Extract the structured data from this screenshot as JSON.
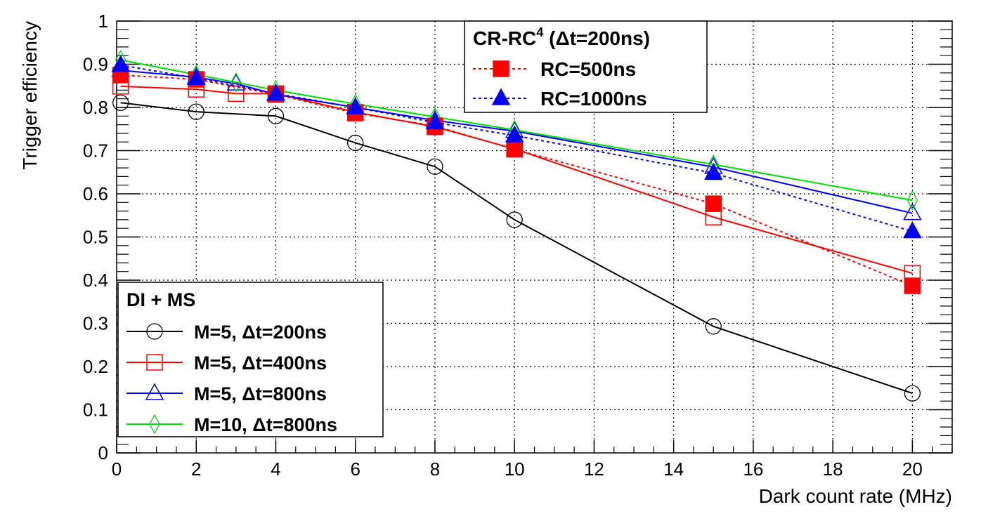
{
  "chart_data": {
    "type": "line",
    "xlabel": "Dark count rate (MHz)",
    "ylabel": "Trigger efficiency",
    "xlim": [
      0,
      21
    ],
    "ylim": [
      0,
      1
    ],
    "xticks": [
      "0",
      "2",
      "4",
      "6",
      "8",
      "10",
      "12",
      "14",
      "16",
      "18",
      "20"
    ],
    "yticks": [
      "0",
      "0.1",
      "0.2",
      "0.3",
      "0.4",
      "0.5",
      "0.6",
      "0.7",
      "0.8",
      "0.9",
      "1"
    ],
    "grid": true,
    "legends": [
      {
        "title": "DI + MS",
        "placement": "bottom-left",
        "entries": [
          "M=5, Δt=200ns",
          "M=5, Δt=400ns",
          "M=5, Δt=800ns",
          "M=10, Δt=800ns"
        ]
      },
      {
        "title": "CR-RC",
        "title_sup": "4",
        "title_suffix": " (Δt=200ns)",
        "placement": "top-right",
        "entries": [
          "RC=500ns",
          "RC=1000ns"
        ]
      }
    ],
    "series": [
      {
        "name": "M=5, Δt=200ns",
        "color": "#000000",
        "marker": "open-circle",
        "dash": false,
        "x": [
          0.1,
          2,
          4,
          6,
          8,
          10,
          15,
          20
        ],
        "y": [
          0.811,
          0.79,
          0.78,
          0.718,
          0.663,
          0.54,
          0.293,
          0.138
        ]
      },
      {
        "name": "M=5, Δt=400ns",
        "color": "#ff0000",
        "marker": "open-square",
        "dash": false,
        "x": [
          0.1,
          2,
          3,
          4,
          6,
          8,
          10,
          15,
          20
        ],
        "y": [
          0.849,
          0.842,
          0.832,
          0.832,
          0.789,
          0.755,
          0.704,
          0.546,
          0.416
        ]
      },
      {
        "name": "M=5, Δt=800ns",
        "color": "#0000ff",
        "marker": "open-triangle",
        "dash": false,
        "x": [
          0.1,
          2,
          3,
          4,
          6,
          8,
          10,
          15,
          20
        ],
        "y": [
          0.886,
          0.87,
          0.855,
          0.83,
          0.8,
          0.77,
          0.745,
          0.662,
          0.555
        ]
      },
      {
        "name": "M=10, Δt=800ns",
        "color": "#00dd00",
        "marker": "open-diamond",
        "dash": false,
        "x": [
          0.1,
          2,
          3,
          4,
          6,
          8,
          10,
          15,
          20
        ],
        "y": [
          0.91,
          0.876,
          0.858,
          0.84,
          0.808,
          0.778,
          0.748,
          0.668,
          0.585
        ]
      },
      {
        "name": "RC=500ns",
        "color": "#ff0000",
        "marker": "filled-square",
        "dash": true,
        "x": [
          0.1,
          2,
          4,
          6,
          8,
          10,
          15,
          20
        ],
        "y": [
          0.875,
          0.865,
          0.83,
          0.787,
          0.757,
          0.703,
          0.577,
          0.387
        ]
      },
      {
        "name": "RC=1000ns",
        "color": "#0000ff",
        "marker": "filled-triangle",
        "dash": true,
        "x": [
          0.1,
          2,
          4,
          6,
          8,
          10,
          15,
          20
        ],
        "y": [
          0.898,
          0.868,
          0.832,
          0.8,
          0.765,
          0.735,
          0.648,
          0.513
        ]
      }
    ]
  }
}
